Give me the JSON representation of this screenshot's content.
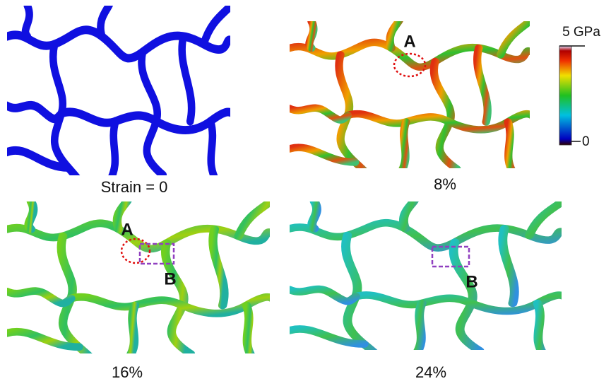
{
  "panels": [
    {
      "caption": "Strain = 0"
    },
    {
      "caption": "8%",
      "annotations": [
        "A"
      ]
    },
    {
      "caption": "16%",
      "annotations": [
        "A",
        "B"
      ]
    },
    {
      "caption": "24%",
      "annotations": [
        "B"
      ]
    }
  ],
  "colorbar": {
    "max_label": "5 GPa",
    "min_label": "0"
  }
}
